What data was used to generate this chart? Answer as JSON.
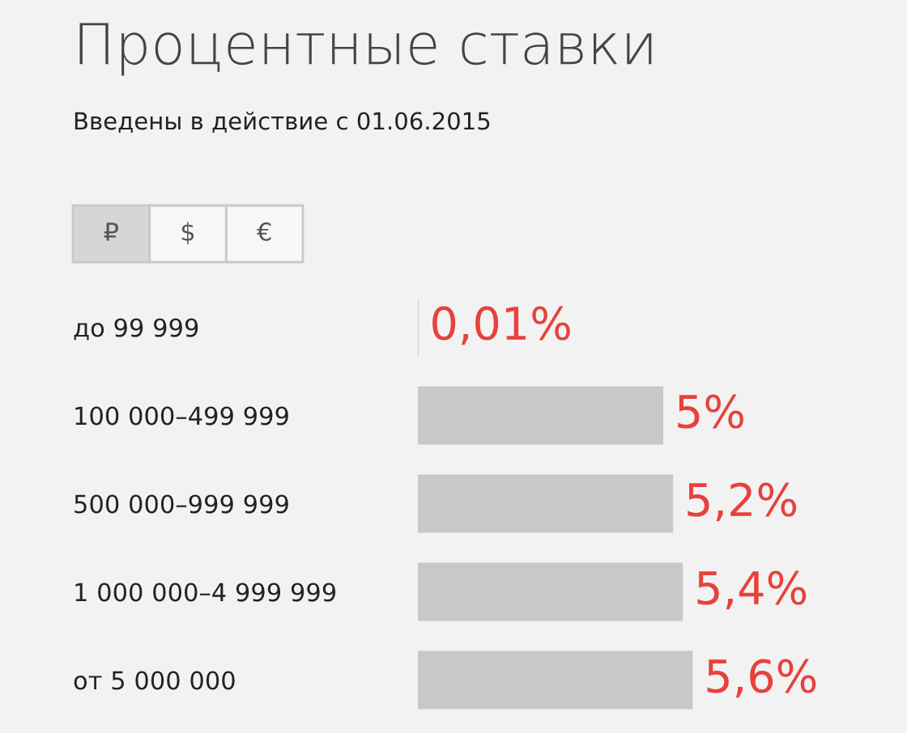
{
  "chart_data": {
    "type": "bar",
    "orientation": "horizontal",
    "title": "Процентные ставки",
    "subtitle": "Введены в действие с 01.06.2015",
    "annotations": [
      "₽",
      "$",
      "€"
    ],
    "categories": [
      "до 99 999",
      "100 000–499 999",
      "500 000–999 999",
      "1 000 000–4 999 999",
      "от 5 000 000"
    ],
    "values": [
      0.01,
      5,
      5.2,
      5.4,
      5.6
    ],
    "colors": [
      "#b5b5b5",
      "#c8c8c8",
      "#c8c8c8",
      "#c8c8c8",
      "#c8c8c8"
    ],
    "value_labels": [
      "0,01%",
      "5%",
      "5,2%",
      "5,4%",
      "5,6%"
    ],
    "grid": false,
    "legend": false
  }
}
